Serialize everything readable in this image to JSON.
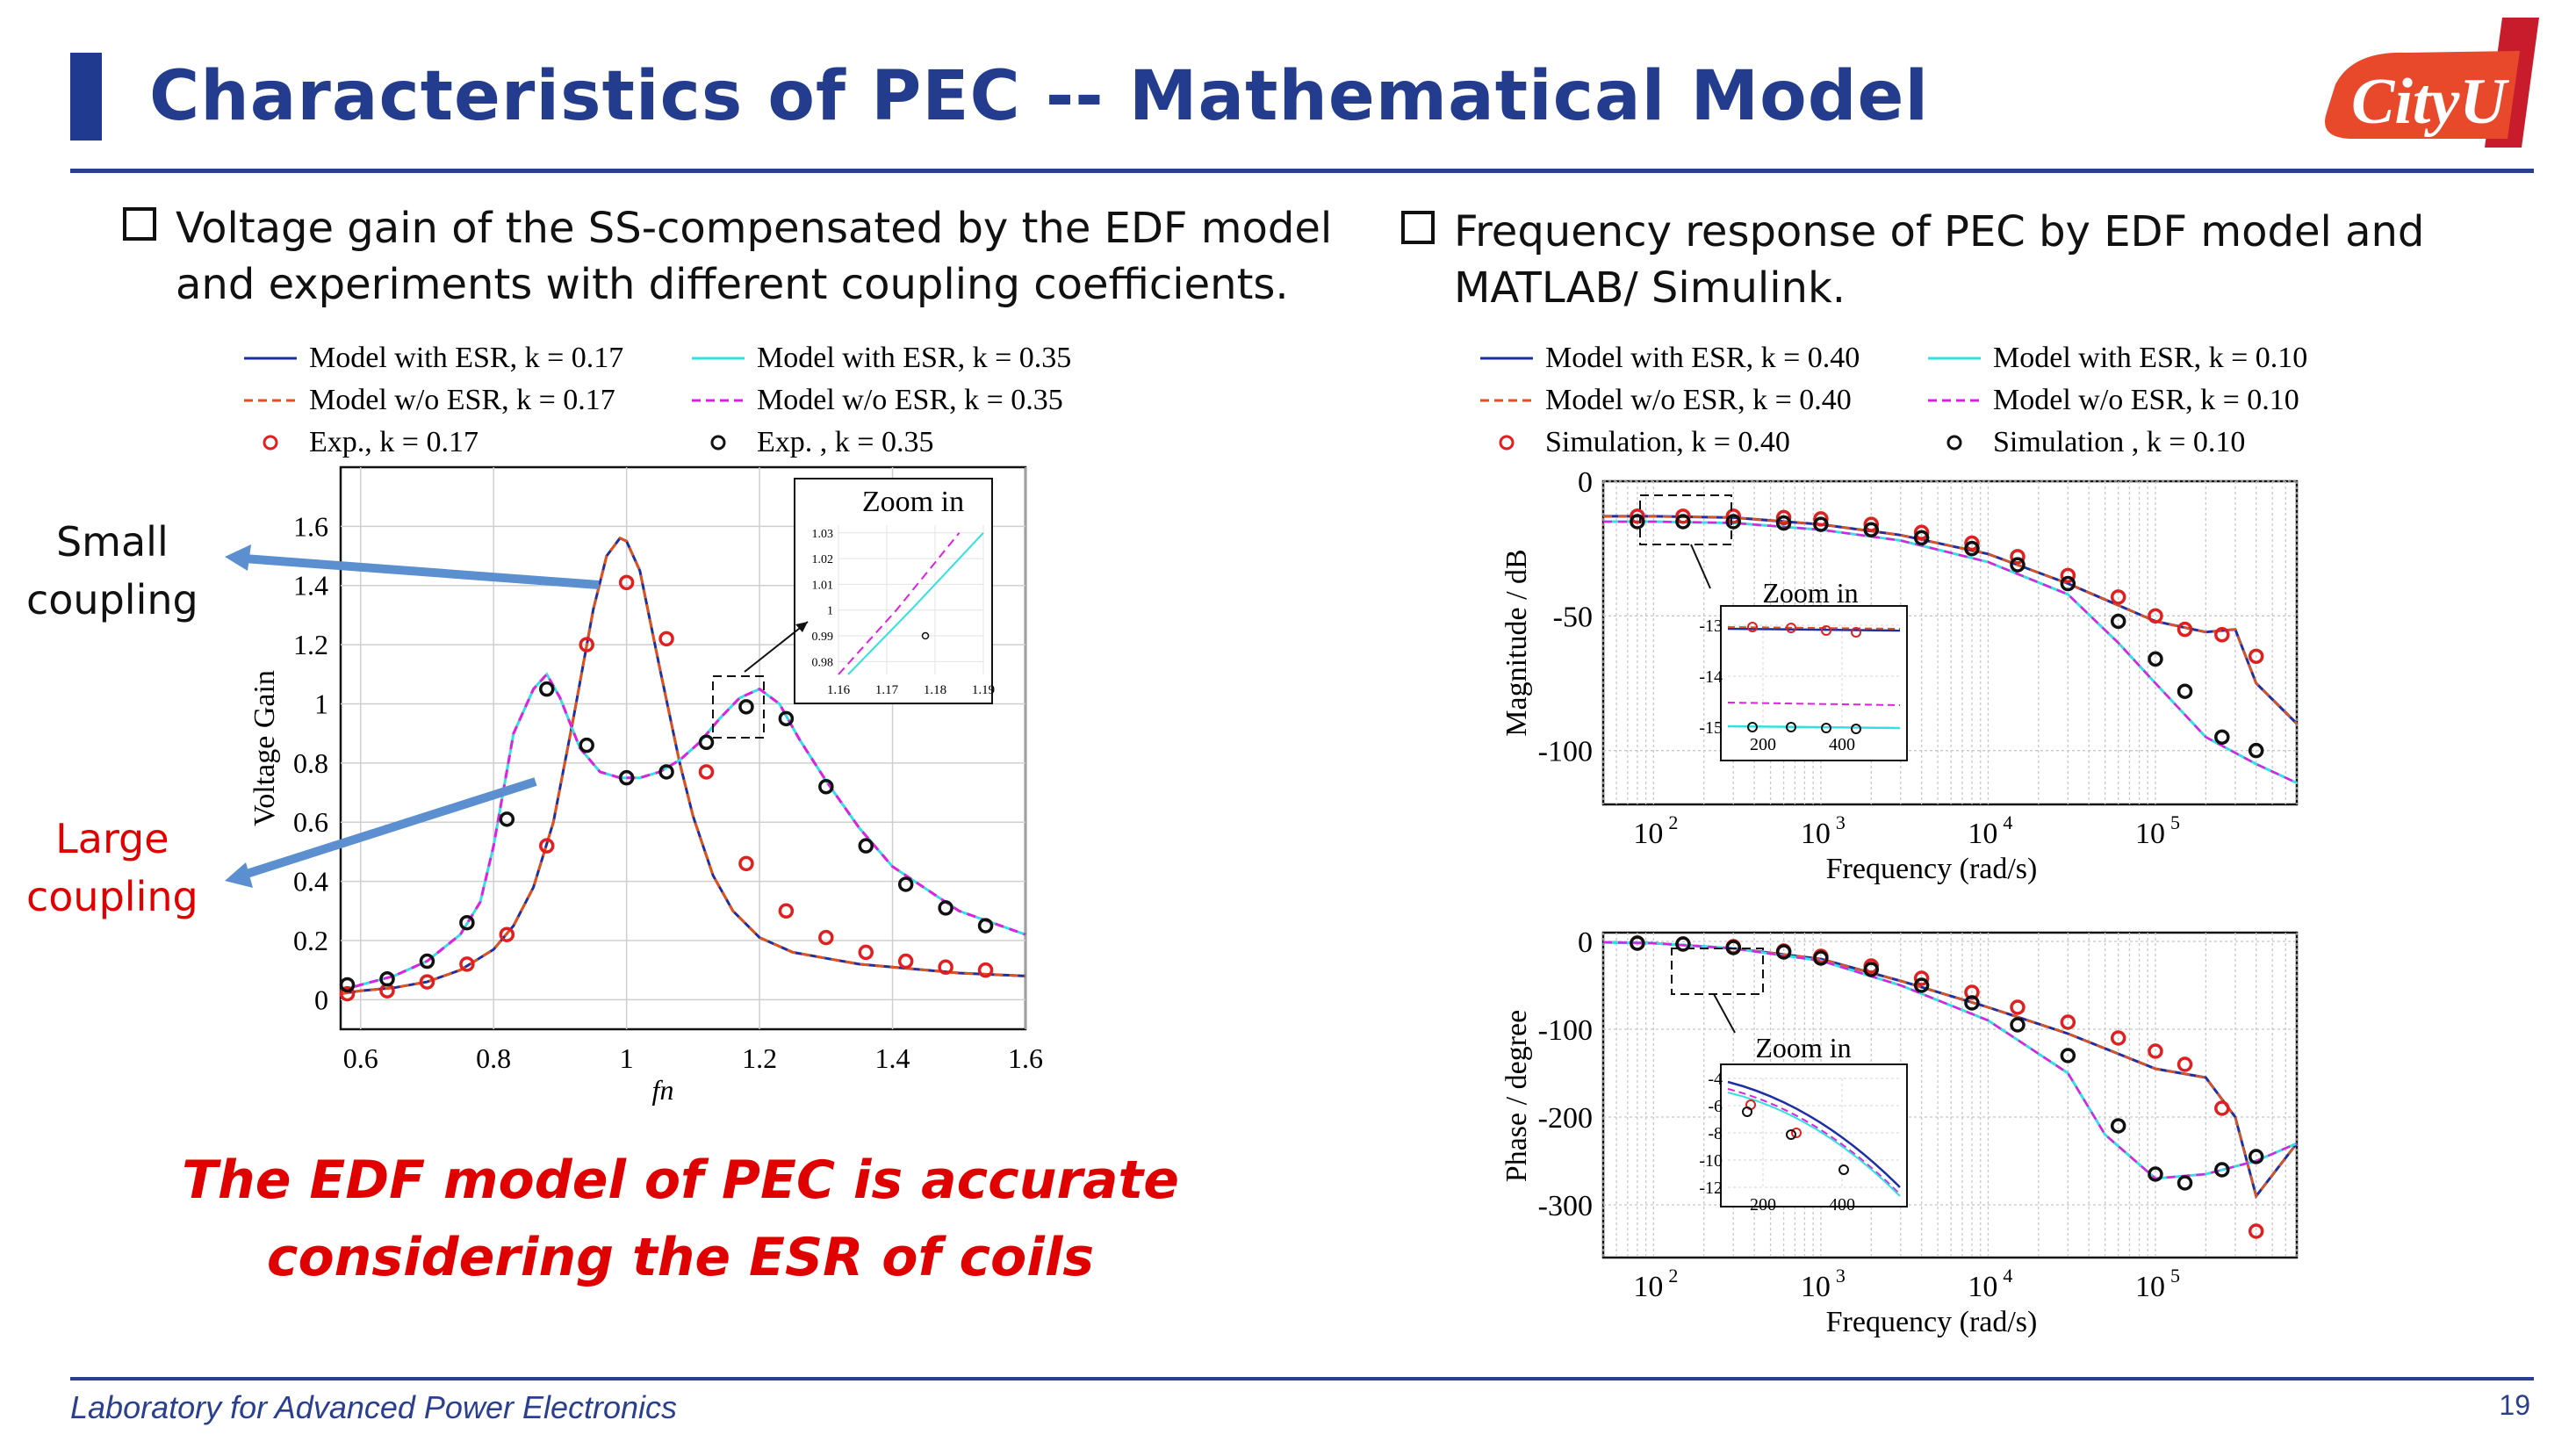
{
  "slide": {
    "title": "Characteristics of PEC -- Mathematical Model",
    "footer": "Laboratory for Advanced Power Electronics",
    "page_number": "19",
    "logo_text": "CityU",
    "colors": {
      "title": "#233c8e",
      "rule": "#2a3f8f",
      "emphasis": "#e00000",
      "logo": "#e8492a"
    }
  },
  "left": {
    "bullet_line1": "Voltage gain of the SS-compensated by the EDF model",
    "bullet_line2": "and experiments with different coupling coefficients.",
    "small_coupling_l1": "Small",
    "small_coupling_l2": "coupling",
    "large_coupling_l1": "Large",
    "large_coupling_l2": "coupling",
    "conclusion_l1": "The EDF model of PEC is accurate",
    "conclusion_l2": "considering the ESR of coils"
  },
  "right": {
    "bullet_line1": "Frequency response of PEC by EDF model and",
    "bullet_line2": "MATLAB/ Simulink."
  },
  "chart_data": [
    {
      "type": "line",
      "xlabel": "fn",
      "ylabel": "Voltage Gain",
      "xlim": [
        0.57,
        1.6
      ],
      "ylim": [
        -0.1,
        1.8
      ],
      "xticks": [
        "0.6",
        "0.8",
        "1",
        "1.2",
        "1.4",
        "1.6"
      ],
      "yticks": [
        "0",
        "0.2",
        "0.4",
        "0.6",
        "0.8",
        "1",
        "1.2",
        "1.4",
        "1.6"
      ],
      "grid": true,
      "legend": [
        {
          "name": "Model with ESR, k = 0.17",
          "style": "solid",
          "color": "#1c2fa3"
        },
        {
          "name": "Model with ESR, k = 0.35",
          "style": "solid",
          "color": "#33e0e0"
        },
        {
          "name": "Model w/o ESR, k = 0.17",
          "style": "dashed",
          "color": "#e0521c"
        },
        {
          "name": "Model w/o ESR, k = 0.35",
          "style": "dashed",
          "color": "#e020e0"
        },
        {
          "name": "Exp., k = 0.17",
          "style": "marker",
          "color": "#e02020"
        },
        {
          "name": "Exp. , k = 0.35",
          "style": "marker",
          "color": "#111111"
        }
      ],
      "series": [
        {
          "name": "Model with ESR, k = 0.17",
          "x": [
            0.57,
            0.6,
            0.65,
            0.7,
            0.75,
            0.8,
            0.83,
            0.86,
            0.89,
            0.92,
            0.95,
            0.97,
            0.99,
            1.0,
            1.02,
            1.05,
            1.08,
            1.1,
            1.13,
            1.16,
            1.2,
            1.25,
            1.3,
            1.35,
            1.4,
            1.5,
            1.6
          ],
          "y": [
            0.02,
            0.03,
            0.04,
            0.06,
            0.1,
            0.17,
            0.25,
            0.38,
            0.6,
            0.95,
            1.32,
            1.5,
            1.56,
            1.55,
            1.45,
            1.12,
            0.8,
            0.62,
            0.42,
            0.3,
            0.21,
            0.16,
            0.14,
            0.12,
            0.11,
            0.09,
            0.08
          ]
        },
        {
          "name": "Model with ESR, k = 0.35",
          "x": [
            0.57,
            0.6,
            0.65,
            0.7,
            0.75,
            0.78,
            0.8,
            0.83,
            0.86,
            0.88,
            0.9,
            0.93,
            0.96,
            0.99,
            1.02,
            1.05,
            1.08,
            1.11,
            1.14,
            1.17,
            1.2,
            1.23,
            1.26,
            1.3,
            1.35,
            1.4,
            1.5,
            1.6
          ],
          "y": [
            0.03,
            0.05,
            0.08,
            0.13,
            0.22,
            0.33,
            0.52,
            0.9,
            1.05,
            1.1,
            1.02,
            0.85,
            0.77,
            0.75,
            0.75,
            0.77,
            0.81,
            0.87,
            0.95,
            1.02,
            1.05,
            1.0,
            0.88,
            0.74,
            0.58,
            0.45,
            0.3,
            0.22
          ]
        },
        {
          "name": "Exp., k = 0.17",
          "x": [
            0.58,
            0.64,
            0.7,
            0.76,
            0.82,
            0.88,
            0.94,
            1.0,
            1.06,
            1.12,
            1.18,
            1.24,
            1.3,
            1.36,
            1.42,
            1.48,
            1.54
          ],
          "y": [
            0.02,
            0.03,
            0.06,
            0.12,
            0.22,
            0.52,
            1.2,
            1.41,
            1.22,
            0.77,
            0.46,
            0.3,
            0.21,
            0.16,
            0.13,
            0.11,
            0.1
          ]
        },
        {
          "name": "Exp. , k = 0.35",
          "x": [
            0.58,
            0.64,
            0.7,
            0.76,
            0.82,
            0.88,
            0.94,
            1.0,
            1.06,
            1.12,
            1.18,
            1.24,
            1.3,
            1.36,
            1.42,
            1.48,
            1.54
          ],
          "y": [
            0.05,
            0.07,
            0.13,
            0.26,
            0.61,
            1.05,
            0.86,
            0.75,
            0.77,
            0.87,
            0.99,
            0.95,
            0.72,
            0.52,
            0.39,
            0.31,
            0.25
          ]
        }
      ],
      "inset": {
        "title": "Zoom in",
        "xticks": [
          "1.16",
          "1.17",
          "1.18",
          "1.19"
        ],
        "yticks": [
          "0.98",
          "0.99",
          "1",
          "1.01",
          "1.02",
          "1.03"
        ],
        "series": [
          {
            "name": "Model with ESR, k = 0.35",
            "x": [
              1.162,
              1.175,
              1.19
            ],
            "y": [
              0.975,
              1.0,
              1.03
            ]
          },
          {
            "name": "Model w/o ESR, k = 0.35",
            "x": [
              1.16,
              1.172,
              1.185
            ],
            "y": [
              0.975,
              1.0,
              1.03
            ]
          },
          {
            "name": "Exp. , k = 0.35",
            "x": [
              1.178
            ],
            "y": [
              0.99
            ]
          }
        ]
      }
    },
    {
      "type": "line",
      "xlabel": "Frequency (rad/s)",
      "ylabel": "Magnitude / dB",
      "xscale": "log",
      "xlim": [
        50,
        700000
      ],
      "ylim": [
        -120,
        0
      ],
      "xticks": [
        "10^2",
        "10^3",
        "10^4",
        "10^5"
      ],
      "yticks": [
        "0",
        "-50",
        "-100"
      ],
      "grid": true,
      "legend": [
        {
          "name": "Model with ESR, k = 0.40",
          "style": "solid",
          "color": "#1c2fa3"
        },
        {
          "name": "Model with ESR, k = 0.10",
          "style": "solid",
          "color": "#33e0e0"
        },
        {
          "name": "Model w/o ESR, k = 0.40",
          "style": "dashed",
          "color": "#e0521c"
        },
        {
          "name": "Model w/o ESR, k = 0.10",
          "style": "dashed",
          "color": "#e020e0"
        },
        {
          "name": "Simulation, k = 0.40",
          "style": "marker",
          "color": "#e02020"
        },
        {
          "name": "Simulation , k = 0.10",
          "style": "marker",
          "color": "#111111"
        }
      ],
      "series": [
        {
          "name": "Model with ESR, k = 0.40",
          "x": [
            50,
            100,
            300,
            1000,
            3000,
            10000,
            30000,
            100000,
            200000,
            300000,
            400000,
            700000
          ],
          "y": [
            -13,
            -13,
            -13.5,
            -16,
            -20,
            -27,
            -38,
            -52,
            -56,
            -55,
            -75,
            -90
          ]
        },
        {
          "name": "Model with ESR, k = 0.10",
          "x": [
            50,
            100,
            300,
            1000,
            3000,
            10000,
            30000,
            60000,
            100000,
            200000,
            400000,
            700000
          ],
          "y": [
            -15,
            -15,
            -15.5,
            -18,
            -22,
            -30,
            -42,
            -60,
            -75,
            -95,
            -105,
            -112
          ]
        },
        {
          "name": "Simulation, k = 0.40",
          "x": [
            80,
            150,
            300,
            600,
            1000,
            2000,
            4000,
            8000,
            15000,
            30000,
            60000,
            100000,
            150000,
            250000,
            400000
          ],
          "y": [
            -13,
            -13,
            -13,
            -13.5,
            -14,
            -16,
            -19,
            -23,
            -28,
            -35,
            -43,
            -50,
            -55,
            -57,
            -65
          ]
        },
        {
          "name": "Simulation , k = 0.10",
          "x": [
            80,
            150,
            300,
            600,
            1000,
            2000,
            4000,
            8000,
            15000,
            30000,
            60000,
            100000,
            150000,
            250000,
            400000
          ],
          "y": [
            -15,
            -15,
            -15,
            -15.5,
            -16,
            -18,
            -21,
            -25,
            -31,
            -38,
            -52,
            -66,
            -78,
            -95,
            -100
          ]
        }
      ],
      "inset": {
        "title": "Zoom in",
        "xticks": [
          "200",
          "400"
        ],
        "yticks": [
          "-13",
          "-14",
          "-15"
        ]
      }
    },
    {
      "type": "line",
      "xlabel": "Frequency (rad/s)",
      "ylabel": "Phase / degree",
      "xscale": "log",
      "xlim": [
        50,
        700000
      ],
      "ylim": [
        -360,
        10
      ],
      "xticks": [
        "10^2",
        "10^3",
        "10^4",
        "10^5"
      ],
      "yticks": [
        "0",
        "-100",
        "-200",
        "-300"
      ],
      "grid": true,
      "series": [
        {
          "name": "Model with ESR, k = 0.40",
          "x": [
            50,
            100,
            300,
            1000,
            3000,
            10000,
            30000,
            100000,
            200000,
            300000,
            400000,
            700000
          ],
          "y": [
            -1,
            -2,
            -8,
            -20,
            -45,
            -75,
            -105,
            -145,
            -155,
            -200,
            -290,
            -230
          ]
        },
        {
          "name": "Model with ESR, k = 0.10",
          "x": [
            50,
            100,
            300,
            1000,
            3000,
            10000,
            30000,
            50000,
            100000,
            200000,
            400000,
            700000
          ],
          "y": [
            -1,
            -2,
            -8,
            -22,
            -50,
            -90,
            -150,
            -220,
            -270,
            -265,
            -250,
            -230
          ]
        },
        {
          "name": "Simulation, k = 0.40",
          "x": [
            80,
            150,
            300,
            600,
            1000,
            2000,
            4000,
            8000,
            15000,
            30000,
            60000,
            100000,
            150000,
            250000,
            400000
          ],
          "y": [
            -2,
            -3,
            -6,
            -11,
            -17,
            -28,
            -42,
            -58,
            -75,
            -92,
            -110,
            -125,
            -140,
            -190,
            -330
          ]
        },
        {
          "name": "Simulation , k = 0.10",
          "x": [
            80,
            150,
            300,
            600,
            1000,
            2000,
            4000,
            8000,
            15000,
            30000,
            60000,
            100000,
            150000,
            250000,
            400000
          ],
          "y": [
            -2,
            -3,
            -7,
            -12,
            -19,
            -32,
            -50,
            -70,
            -95,
            -130,
            -210,
            -265,
            -275,
            -260,
            -245
          ]
        }
      ],
      "inset": {
        "title": "Zoom in",
        "xticks": [
          "200",
          "400"
        ],
        "yticks": [
          "-4",
          "-6",
          "-8",
          "-10",
          "-12"
        ]
      }
    }
  ]
}
